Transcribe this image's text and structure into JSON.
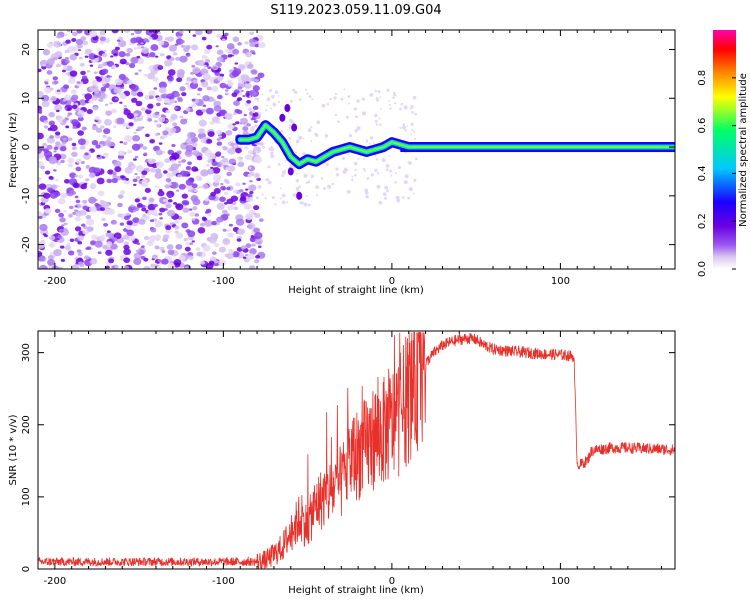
{
  "title": "S119.2023.059.11.09.G04",
  "chart_data": [
    {
      "type": "heatmap",
      "title": "",
      "xlabel": "Height of straight line (km)",
      "ylabel": "Frequency (Hz)",
      "xlim": [
        -210,
        168
      ],
      "ylim": [
        -25,
        24
      ],
      "xticks": [
        -200,
        -100,
        0,
        100
      ],
      "xtick_labels": [
        "-200",
        "-100",
        "0",
        "100"
      ],
      "yticks": [
        -20,
        -10,
        0,
        10,
        20
      ],
      "ytick_labels": [
        "-20",
        "-10",
        "0",
        "10",
        "20"
      ],
      "colorbar": {
        "label": "Normalized spectral amplitude",
        "range": [
          0,
          1
        ],
        "ticks": [
          0.0,
          0.2,
          0.4,
          0.6,
          0.8
        ],
        "tick_labels": [
          "0.0",
          "0.2",
          "0.4",
          "0.6",
          "0.8"
        ],
        "colors": [
          "#ffffff",
          "#dcc8f0",
          "#9b59f0",
          "#6a00e0",
          "#1a00ff",
          "#00c8ff",
          "#00ff66",
          "#ffff00",
          "#ff8800",
          "#ff0000",
          "#ff00aa"
        ]
      },
      "ridge": {
        "x": [
          -90,
          -85,
          -80,
          -75,
          -70,
          -65,
          -60,
          -55,
          -50,
          -45,
          -40,
          -35,
          -30,
          -25,
          -20,
          -15,
          -10,
          -5,
          0,
          5,
          10,
          30,
          60,
          90,
          120,
          150,
          168
        ],
        "y": [
          1.5,
          1.5,
          2.0,
          4.5,
          3.0,
          1.0,
          -2.0,
          -3.5,
          -2.5,
          -3.0,
          -2.0,
          -1.0,
          -0.5,
          0.0,
          -0.5,
          -1.0,
          -0.5,
          0.0,
          1.0,
          0.5,
          0.0,
          0.0,
          0.0,
          0.0,
          0.0,
          0.0,
          0.0
        ]
      },
      "noise_region_x": [
        -210,
        -85
      ]
    },
    {
      "type": "line",
      "title": "",
      "xlabel": "Height of straight line (km)",
      "ylabel": "SNR (10 * v/v)",
      "xlim": [
        -210,
        168
      ],
      "ylim": [
        0,
        330
      ],
      "xticks": [
        -200,
        -100,
        0,
        100
      ],
      "xtick_labels": [
        "-200",
        "-100",
        "0",
        "100"
      ],
      "yticks": [
        0,
        100,
        200,
        300
      ],
      "ytick_labels": [
        "0",
        "100",
        "200",
        "300"
      ],
      "color": "#e8302a",
      "series": [
        {
          "name": "SNR",
          "x": [
            -210,
            -180,
            -150,
            -120,
            -90,
            -80,
            -75,
            -70,
            -65,
            -60,
            -55,
            -50,
            -45,
            -40,
            -35,
            -30,
            -25,
            -20,
            -15,
            -10,
            -5,
            0,
            5,
            10,
            15,
            20,
            25,
            30,
            35,
            40,
            45,
            50,
            55,
            60,
            70,
            80,
            90,
            100,
            108,
            110,
            112,
            116,
            118,
            120,
            130,
            140,
            150,
            160,
            168
          ],
          "y": [
            10,
            10,
            10,
            10,
            10,
            10,
            12,
            20,
            30,
            50,
            70,
            60,
            90,
            100,
            110,
            120,
            150,
            160,
            170,
            185,
            190,
            200,
            215,
            240,
            265,
            285,
            300,
            310,
            315,
            318,
            320,
            318,
            310,
            305,
            302,
            300,
            298,
            297,
            295,
            145,
            145,
            150,
            162,
            165,
            168,
            168,
            167,
            166,
            165
          ]
        }
      ]
    }
  ]
}
